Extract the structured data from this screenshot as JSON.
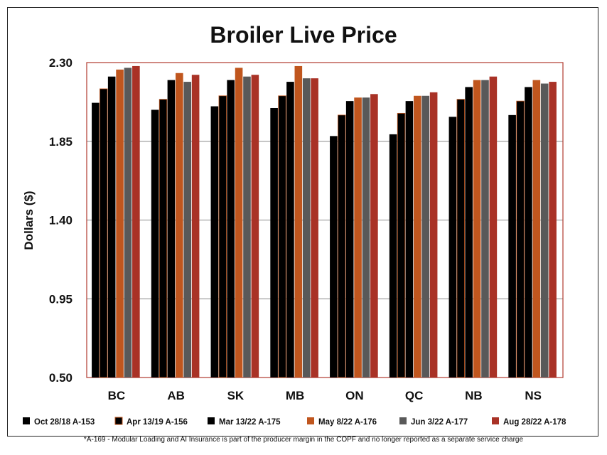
{
  "chart_data": {
    "type": "bar",
    "title": "Broiler Live Price",
    "xlabel": "",
    "ylabel": "Dollars ($)",
    "ylim": [
      0.5,
      2.3
    ],
    "yticks": [
      "0.50",
      "0.95",
      "1.40",
      "1.85",
      "2.30"
    ],
    "grid": "horizontal",
    "legend_position": "bottom",
    "categories": [
      "BC",
      "AB",
      "SK",
      "MB",
      "ON",
      "QC",
      "NB",
      "NS"
    ],
    "series": [
      {
        "name": "Oct 28/18 A-153",
        "color": "#000000",
        "values": [
          2.07,
          2.03,
          2.05,
          2.04,
          1.88,
          1.89,
          1.99,
          2.0
        ]
      },
      {
        "name": "Apr 13/19 A-156",
        "color": "#000000",
        "edge": "#c0561e",
        "values": [
          2.15,
          2.09,
          2.11,
          2.11,
          2.0,
          2.01,
          2.09,
          2.08
        ]
      },
      {
        "name": "Mar 13/22 A-175",
        "color": "#000000",
        "values": [
          2.22,
          2.2,
          2.2,
          2.19,
          2.08,
          2.08,
          2.16,
          2.16
        ]
      },
      {
        "name": "May 8/22 A-176",
        "color": "#c0561e",
        "values": [
          2.26,
          2.24,
          2.27,
          2.28,
          2.1,
          2.11,
          2.2,
          2.2
        ]
      },
      {
        "name": "Jun 3/22 A-177",
        "color": "#595959",
        "values": [
          2.27,
          2.19,
          2.22,
          2.21,
          2.1,
          2.11,
          2.2,
          2.18
        ]
      },
      {
        "name": "Aug 28/22 A-178",
        "color": "#a93226",
        "values": [
          2.28,
          2.23,
          2.23,
          2.21,
          2.12,
          2.13,
          2.22,
          2.19
        ]
      }
    ]
  },
  "footnote": "*A-169 - Modular Loading and AI Insurance is part of the producer margin in the COPF and no longer reported as a separate service charge"
}
